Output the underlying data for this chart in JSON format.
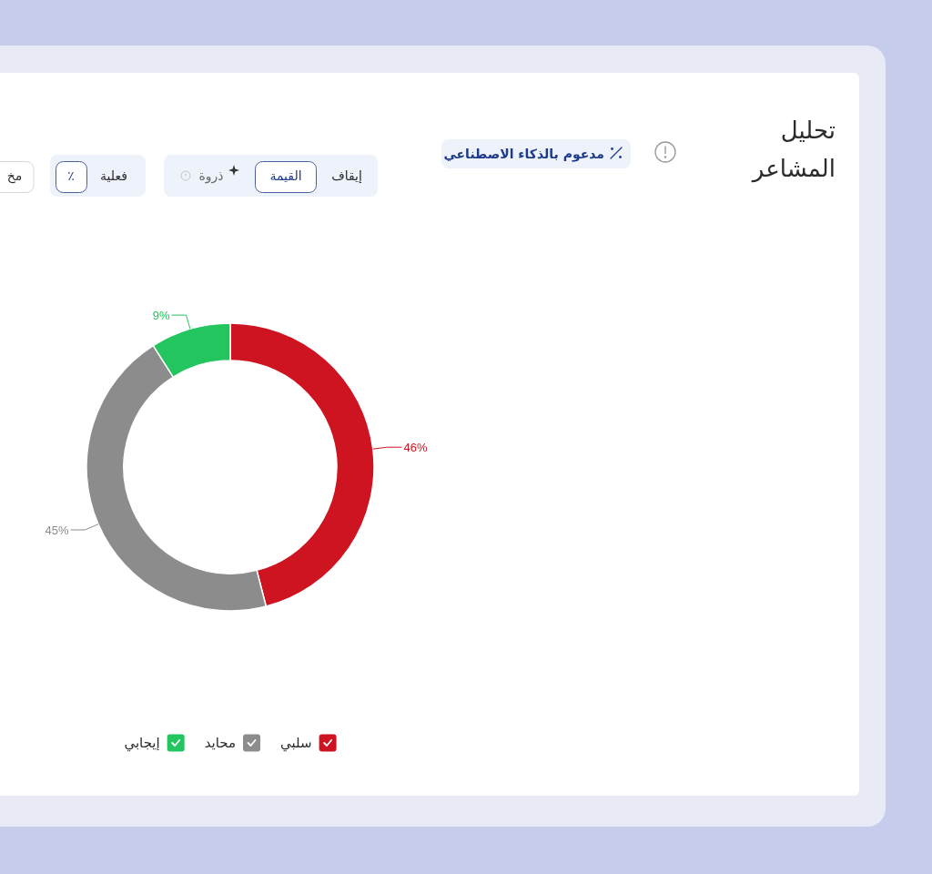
{
  "chart_data": {
    "type": "donut",
    "title": "تحليل المشاعر",
    "categories": [
      "سلبي",
      "محايد",
      "إيجابي"
    ],
    "values": [
      46,
      45,
      9
    ],
    "colors": [
      "#ce1421",
      "#8c8c8c",
      "#22c55e"
    ],
    "value_labels": [
      "46%",
      "45%",
      "9%"
    ],
    "legend": "bottom",
    "annotations": [
      "مدعوم بالذكاء الاصطناعي",
      "إيقاف",
      "القيمة",
      "ذروة",
      "فعلية",
      "٪",
      "مخ"
    ]
  }
}
